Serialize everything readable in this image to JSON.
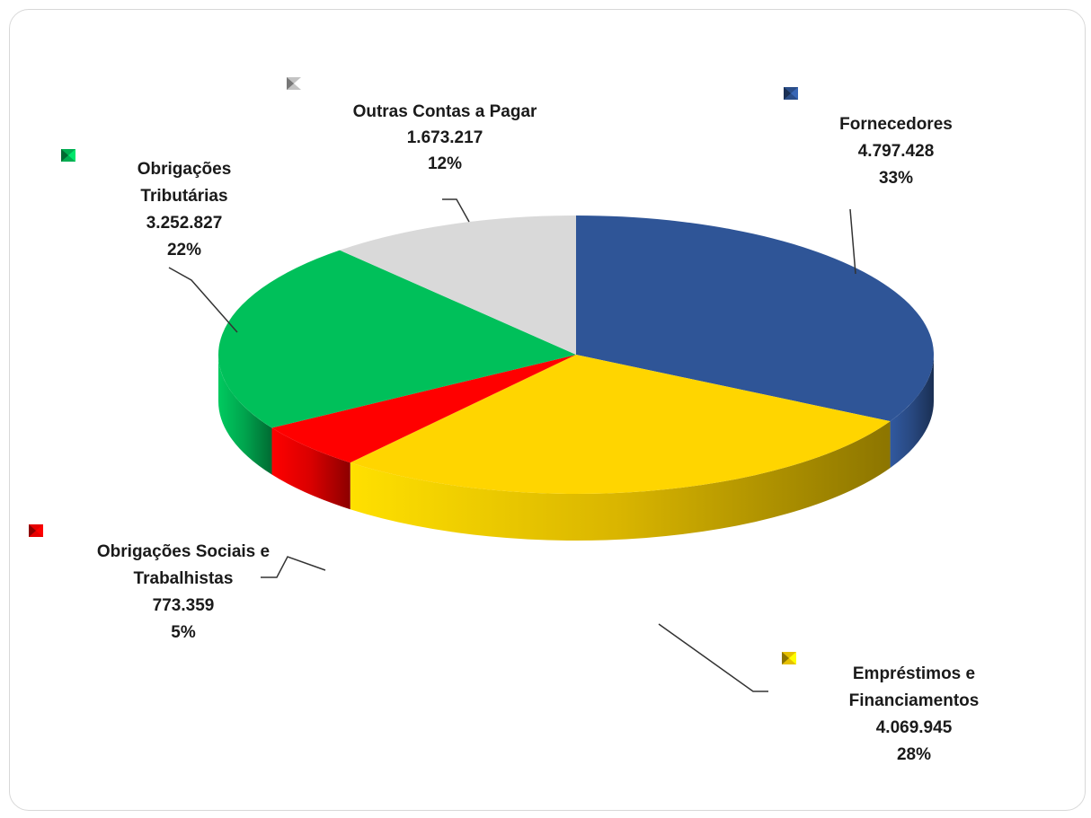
{
  "chart_data": {
    "type": "pie",
    "title": "",
    "slices": [
      {
        "category": "Fornecedores",
        "value": "4.797.428",
        "numeric": 4797428,
        "percent": "33%",
        "color": "#2F5597"
      },
      {
        "category": "Empréstimos e Financiamentos",
        "value": "4.069.945",
        "numeric": 4069945,
        "percent": "28%",
        "color": "#FFD500"
      },
      {
        "category": "Obrigações Sociais e Trabalhistas",
        "value": "773.359",
        "numeric": 773359,
        "percent": "5%",
        "color": "#FF0000"
      },
      {
        "category": "Obrigações Tributárias",
        "value": "3.252.827",
        "numeric": 3252827,
        "percent": "22%",
        "color": "#00C05A"
      },
      {
        "category": "Outras Contas a Pagar",
        "value": "1.673.217",
        "numeric": 1673217,
        "percent": "12%",
        "color": "#D9D9D9"
      }
    ],
    "labels": [
      {
        "lines": [
          "Fornecedores",
          "4.797.428",
          "33%"
        ]
      },
      {
        "lines": [
          "Empréstimos e",
          "Financiamentos",
          "4.069.945",
          "28%"
        ]
      },
      {
        "lines": [
          "Obrigações Sociais e",
          "Trabalhistas",
          "773.359",
          "5%"
        ]
      },
      {
        "lines": [
          "Obrigações",
          "Tributárias",
          "3.252.827",
          "22%"
        ]
      },
      {
        "lines": [
          "Outras Contas a Pagar",
          "1.673.217",
          "12%"
        ]
      }
    ],
    "legend": "scattered markers",
    "style": "3d-pie"
  }
}
